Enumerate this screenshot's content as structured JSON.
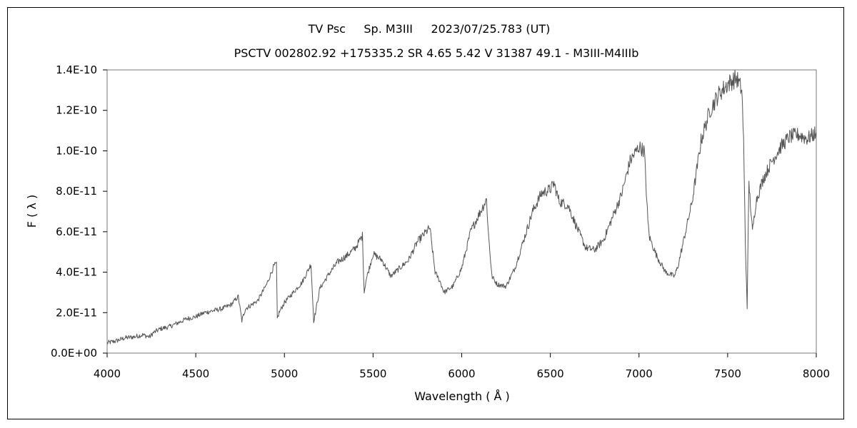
{
  "chart_data": {
    "type": "line",
    "title": "TV Psc     Sp. M3III     2023/07/25.783 (UT)",
    "subtitle": "PSCTV 002802.92 +175335.2 SR 4.65 5.42 V 31387 49.1 - M3III-M4IIIb",
    "xlabel": "Wavelength ( Å )",
    "ylabel": "F ( λ )",
    "xlim": [
      4000,
      8000
    ],
    "ylim": [
      0,
      1.4e-10
    ],
    "xticks": [
      4000,
      4500,
      5000,
      5500,
      6000,
      6500,
      7000,
      7500,
      8000
    ],
    "xtick_labels": [
      "4000",
      "4500",
      "5000",
      "5500",
      "6000",
      "6500",
      "7000",
      "7500",
      "8000"
    ],
    "yticks": [
      0,
      2e-11,
      4e-11,
      6e-11,
      8e-11,
      1e-10,
      1.2e-10,
      1.4e-10
    ],
    "ytick_labels": [
      "0.0E+00",
      "2.0E-11",
      "4.0E-11",
      "6.0E-11",
      "8.0E-11",
      "1.0E-10",
      "1.2E-10",
      "1.4E-10"
    ],
    "grid": false,
    "legend": "none",
    "line_color": "#555555",
    "series": [
      {
        "x": [
          4000,
          4050,
          4100,
          4150,
          4200,
          4240,
          4260,
          4300,
          4350,
          4400,
          4450,
          4500,
          4550,
          4600,
          4650,
          4700,
          4740,
          4760,
          4780,
          4800,
          4850,
          4900,
          4940,
          4955,
          4960,
          4970,
          5000,
          5050,
          5100,
          5150,
          5165,
          5175,
          5200,
          5250,
          5300,
          5350,
          5400,
          5440,
          5450,
          5460,
          5500,
          5550,
          5600,
          5650,
          5700,
          5750,
          5800,
          5820,
          5850,
          5880,
          5900,
          5950,
          6000,
          6050,
          6100,
          6140,
          6150,
          6170,
          6200,
          6250,
          6300,
          6350,
          6400,
          6450,
          6500,
          6520,
          6550,
          6600,
          6650,
          6700,
          6750,
          6800,
          6850,
          6900,
          6950,
          7000,
          7030,
          7050,
          7060,
          7100,
          7150,
          7200,
          7220,
          7250,
          7300,
          7350,
          7400,
          7450,
          7500,
          7550,
          7580,
          7590,
          7600,
          7610,
          7620,
          7640,
          7660,
          7700,
          7750,
          7800,
          7850,
          7900,
          7950,
          8000
        ],
        "y": [
          5e-12,
          6e-12,
          7.5e-12,
          8e-12,
          9e-12,
          8e-12,
          1e-11,
          1.2e-11,
          1.3e-11,
          1.5e-11,
          1.7e-11,
          1.8e-11,
          2e-11,
          2.1e-11,
          2.2e-11,
          2.4e-11,
          2.8e-11,
          1.6e-11,
          2.2e-11,
          2.3e-11,
          2.6e-11,
          3.4e-11,
          4.3e-11,
          4.4e-11,
          1.7e-11,
          2e-11,
          2.5e-11,
          3e-11,
          3.5e-11,
          4.4e-11,
          1.6e-11,
          2e-11,
          3.2e-11,
          3.9e-11,
          4.5e-11,
          4.8e-11,
          5.2e-11,
          5.8e-11,
          3e-11,
          3.6e-11,
          4.9e-11,
          4.6e-11,
          3.8e-11,
          4.2e-11,
          4.6e-11,
          5.5e-11,
          6e-11,
          6.2e-11,
          4e-11,
          3.5e-11,
          3e-11,
          3.3e-11,
          4.2e-11,
          6e-11,
          6.9e-11,
          7.6e-11,
          6e-11,
          3.8e-11,
          3.4e-11,
          3.3e-11,
          4.2e-11,
          5.6e-11,
          7e-11,
          7.9e-11,
          8.1e-11,
          8.4e-11,
          7.5e-11,
          7.3e-11,
          6.2e-11,
          5.2e-11,
          5.1e-11,
          5.6e-11,
          6.7e-11,
          7.8e-11,
          9.5e-11,
          1.02e-10,
          1e-10,
          6.5e-11,
          5.7e-11,
          4.8e-11,
          4e-11,
          3.8e-11,
          4.3e-11,
          5.5e-11,
          7.5e-11,
          1.05e-10,
          1.2e-10,
          1.28e-10,
          1.33e-10,
          1.36e-10,
          1.3e-10,
          1.05e-10,
          5.3e-11,
          2.3e-11,
          8.4e-11,
          6e-11,
          7.5e-11,
          8.6e-11,
          9.5e-11,
          1.02e-10,
          1.07e-10,
          1.08e-10,
          1.06e-10,
          1.09e-10
        ]
      }
    ]
  }
}
